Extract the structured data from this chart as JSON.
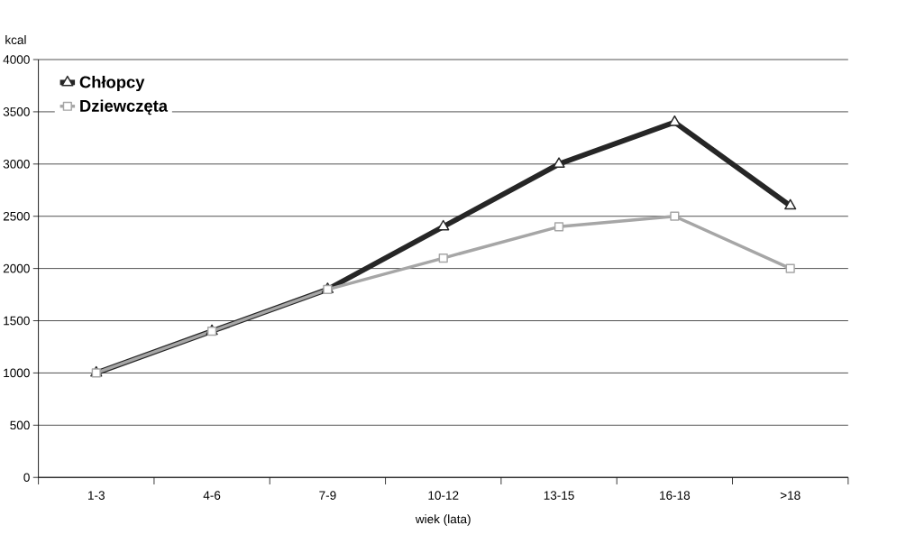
{
  "chart_data": {
    "type": "line",
    "xlabel": "wiek (lata)",
    "ylabel": "kcal",
    "categories": [
      "1-3",
      "4-6",
      "7-9",
      "10-12",
      "13-15",
      "16-18",
      ">18"
    ],
    "series": [
      {
        "name": "Chłopcy",
        "color": "#262626",
        "marker": "triangle",
        "values": [
          1000,
          1400,
          1800,
          2400,
          3000,
          3400,
          2600
        ]
      },
      {
        "name": "Dziewczęta",
        "color": "#a6a6a6",
        "marker": "square",
        "values": [
          1000,
          1400,
          1800,
          2100,
          2400,
          2500,
          2000
        ]
      }
    ],
    "ylim": [
      0,
      4000
    ],
    "yticks": [
      0,
      500,
      1000,
      1500,
      2000,
      2500,
      3000,
      3500,
      4000
    ],
    "grid": "y",
    "legend": "top left",
    "line_style": "solid"
  }
}
